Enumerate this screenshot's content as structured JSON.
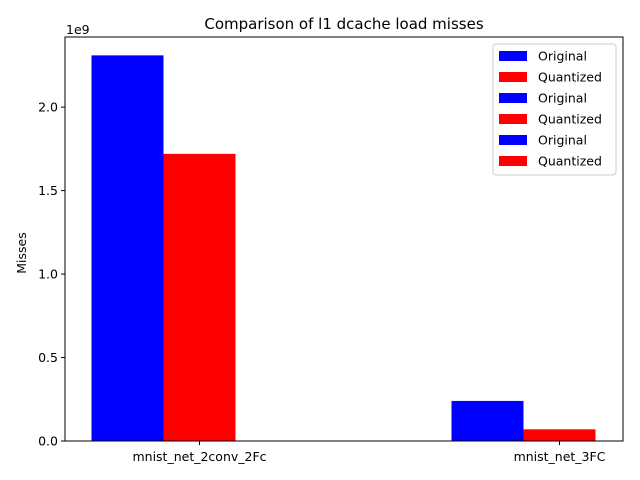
{
  "chart_data": {
    "type": "bar",
    "title": "Comparison of l1 dcache load misses",
    "xlabel": "",
    "ylabel": "Misses",
    "scale_label": "1e9",
    "categories": [
      "mnist_net_2conv_2Fc",
      "mnist_net_3FC"
    ],
    "series": [
      {
        "name": "Original",
        "color": "#0000ff",
        "values": [
          2.31,
          0.24
        ]
      },
      {
        "name": "Quantized",
        "color": "#ff0000",
        "values": [
          1.72,
          0.07
        ]
      }
    ],
    "ylim": [
      0,
      2.42
    ],
    "yticks": [
      0.0,
      0.5,
      1.0,
      1.5,
      2.0
    ],
    "ytick_labels": [
      "0.0",
      "0.5",
      "1.0",
      "1.5",
      "2.0"
    ],
    "legend": {
      "placement": "top-right",
      "entries": [
        {
          "label": "Original",
          "color": "#0000ff"
        },
        {
          "label": "Quantized",
          "color": "#ff0000"
        },
        {
          "label": "Original",
          "color": "#0000ff"
        },
        {
          "label": "Quantized",
          "color": "#ff0000"
        },
        {
          "label": "Original",
          "color": "#0000ff"
        },
        {
          "label": "Quantized",
          "color": "#ff0000"
        }
      ]
    },
    "grid": false
  }
}
